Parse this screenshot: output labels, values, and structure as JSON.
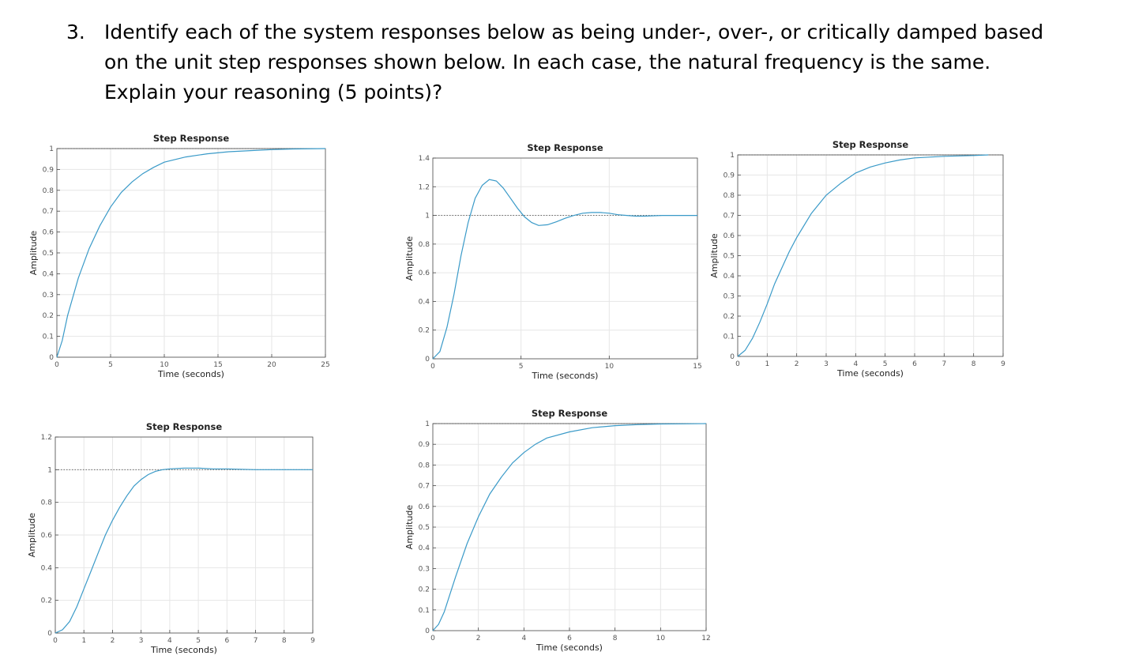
{
  "question": {
    "number": "3.",
    "text": "Identify each of the system responses below as being under-, over-, or critically damped based on the unit step responses shown below.  In each case, the natural frequency is the same.  Explain your reasoning  (5 points)?"
  },
  "chart_data": [
    {
      "type": "line",
      "title": "Step Response",
      "xlabel": "Time (seconds)",
      "ylabel": "Amplitude",
      "xlim": [
        0,
        25
      ],
      "ylim": [
        0,
        1
      ],
      "xticks": [
        0,
        5,
        10,
        15,
        20,
        25
      ],
      "yticks": [
        0,
        0.1,
        0.2,
        0.3,
        0.4,
        0.5,
        0.6,
        0.7,
        0.8,
        0.9,
        1
      ],
      "grid": true,
      "steady_state_line": 1,
      "series": [
        {
          "x": [
            0,
            0.5,
            1,
            2,
            3,
            4,
            5,
            6,
            7,
            8,
            9,
            10,
            12,
            14,
            16,
            18,
            20,
            22,
            25
          ],
          "y": [
            0,
            0.08,
            0.2,
            0.38,
            0.52,
            0.63,
            0.72,
            0.79,
            0.84,
            0.88,
            0.91,
            0.935,
            0.96,
            0.975,
            0.985,
            0.99,
            0.995,
            0.998,
            1.0
          ]
        }
      ]
    },
    {
      "type": "line",
      "title": "Step Response",
      "xlabel": "Time (seconds)",
      "ylabel": "Amplitude",
      "xlim": [
        0,
        15
      ],
      "ylim": [
        0,
        1.4
      ],
      "xticks": [
        0,
        5,
        10,
        15
      ],
      "yticks": [
        0,
        0.2,
        0.4,
        0.6,
        0.8,
        1,
        1.2,
        1.4
      ],
      "grid": true,
      "steady_state_line": 1,
      "series": [
        {
          "x": [
            0,
            0.4,
            0.8,
            1.2,
            1.6,
            2.0,
            2.4,
            2.8,
            3.2,
            3.6,
            4.0,
            4.4,
            4.8,
            5.2,
            5.6,
            6.0,
            6.5,
            7.0,
            7.5,
            8,
            8.5,
            9,
            9.5,
            10,
            10.5,
            11,
            11.5,
            12,
            13,
            14,
            15
          ],
          "y": [
            0,
            0.05,
            0.22,
            0.45,
            0.72,
            0.95,
            1.12,
            1.21,
            1.25,
            1.24,
            1.19,
            1.12,
            1.05,
            0.99,
            0.95,
            0.93,
            0.935,
            0.955,
            0.98,
            1.0,
            1.015,
            1.02,
            1.02,
            1.015,
            1.005,
            1.0,
            0.995,
            0.995,
            1.0,
            1.0,
            1.0
          ]
        }
      ]
    },
    {
      "type": "line",
      "title": "Step Response",
      "xlabel": "Time (seconds)",
      "ylabel": "Amplitude",
      "xlim": [
        0,
        9
      ],
      "ylim": [
        0,
        1
      ],
      "xticks": [
        0,
        1,
        2,
        3,
        4,
        5,
        6,
        7,
        8,
        9
      ],
      "yticks": [
        0,
        0.1,
        0.2,
        0.3,
        0.4,
        0.5,
        0.6,
        0.7,
        0.8,
        0.9,
        1
      ],
      "grid": true,
      "steady_state_line": 1,
      "series": [
        {
          "x": [
            0,
            0.25,
            0.5,
            0.75,
            1,
            1.25,
            1.5,
            1.75,
            2,
            2.5,
            3,
            3.5,
            4,
            4.5,
            5,
            5.5,
            6,
            7,
            8,
            8.5
          ],
          "y": [
            0,
            0.03,
            0.09,
            0.17,
            0.26,
            0.36,
            0.44,
            0.52,
            0.59,
            0.71,
            0.8,
            0.86,
            0.91,
            0.94,
            0.96,
            0.975,
            0.985,
            0.993,
            0.997,
            1.0
          ]
        }
      ]
    },
    {
      "type": "line",
      "title": "Step Response",
      "xlabel": "Time (seconds)",
      "ylabel": "Amplitude",
      "xlim": [
        0,
        9
      ],
      "ylim": [
        0,
        1.2
      ],
      "xticks": [
        0,
        1,
        2,
        3,
        4,
        5,
        6,
        7,
        8,
        9
      ],
      "yticks": [
        0,
        0.2,
        0.4,
        0.6,
        0.8,
        1,
        1.2
      ],
      "grid": true,
      "steady_state_line": 1,
      "series": [
        {
          "x": [
            0,
            0.25,
            0.5,
            0.75,
            1,
            1.25,
            1.5,
            1.75,
            2,
            2.25,
            2.5,
            2.75,
            3,
            3.25,
            3.5,
            3.75,
            4,
            4.5,
            5,
            5.5,
            6,
            7,
            8,
            9
          ],
          "y": [
            0,
            0.02,
            0.07,
            0.16,
            0.27,
            0.38,
            0.49,
            0.6,
            0.69,
            0.77,
            0.84,
            0.9,
            0.94,
            0.97,
            0.99,
            1.0,
            1.005,
            1.01,
            1.01,
            1.005,
            1.005,
            1.0,
            1.0,
            1.0
          ]
        }
      ]
    },
    {
      "type": "line",
      "title": "Step Response",
      "xlabel": "Time (seconds)",
      "ylabel": "Amplitude",
      "xlim": [
        0,
        12
      ],
      "ylim": [
        0,
        1
      ],
      "xticks": [
        0,
        2,
        4,
        6,
        8,
        10,
        12
      ],
      "yticks": [
        0,
        0.1,
        0.2,
        0.3,
        0.4,
        0.5,
        0.6,
        0.7,
        0.8,
        0.9,
        1
      ],
      "grid": true,
      "steady_state_line": 1,
      "series": [
        {
          "x": [
            0,
            0.25,
            0.5,
            1,
            1.5,
            2,
            2.5,
            3,
            3.5,
            4,
            4.5,
            5,
            6,
            7,
            8,
            9,
            10,
            11,
            12
          ],
          "y": [
            0,
            0.03,
            0.09,
            0.26,
            0.42,
            0.55,
            0.66,
            0.74,
            0.81,
            0.86,
            0.9,
            0.93,
            0.96,
            0.98,
            0.99,
            0.995,
            0.998,
            0.999,
            1.0
          ]
        }
      ]
    }
  ]
}
